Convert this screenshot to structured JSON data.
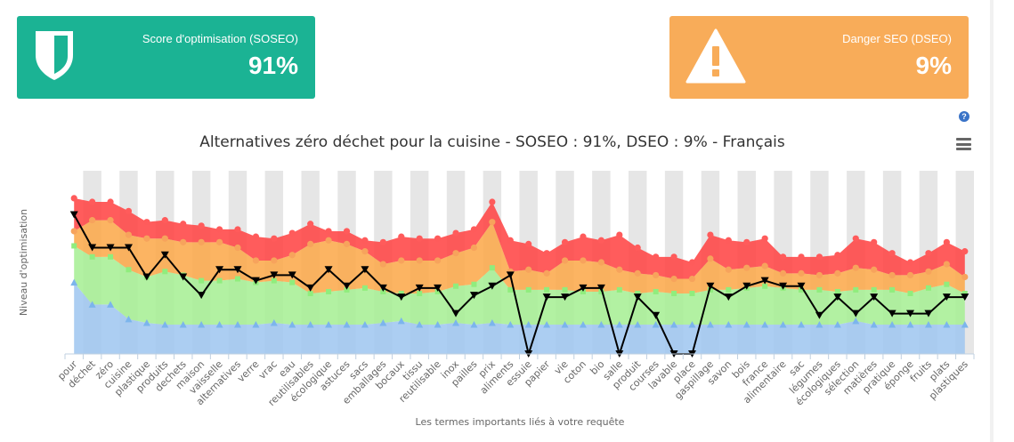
{
  "kpis": {
    "score": {
      "label": "Score d'optimisation (SOSEO)",
      "value": "91%",
      "icon": "shield-icon",
      "color": "#1bb394"
    },
    "danger": {
      "label": "Danger SEO (DSEO)",
      "value": "9%",
      "icon": "warning-icon",
      "color": "#f8ac59"
    }
  },
  "toolbar": {
    "help_icon": "question-icon",
    "help_text": "?",
    "menu_icon": "hamburger-menu-icon"
  },
  "chart_data": {
    "type": "area",
    "title": "Alternatives zéro déchet pour la cuisine - SOSEO : 91%, DSEO : 9% - Français",
    "xlabel": "Les termes importants liés à votre requête",
    "ylabel": "Niveau d'optimisation",
    "ylim": [
      0,
      100
    ],
    "grid": "alternating-columns",
    "legend": "none",
    "categories": [
      "pour",
      "déchet",
      "zéro",
      "cuisine",
      "plastique",
      "produits",
      "dechets",
      "maison",
      "vaisselle",
      "alternatives",
      "verre",
      "vrac",
      "eau",
      "reutilisables",
      "écologique",
      "astuces",
      "sacs",
      "emballages",
      "bocaux",
      "tissu",
      "reutilisable",
      "inox",
      "pailles",
      "prix",
      "aliments",
      "essuie",
      "papier",
      "vie",
      "coton",
      "bio",
      "salle",
      "produit",
      "courses",
      "lavable",
      "place",
      "gaspillage",
      "savon",
      "bois",
      "france",
      "alimentaire",
      "sac",
      "légumes",
      "écologiques",
      "sélection",
      "matières",
      "pratique",
      "éponge",
      "fruits",
      "plats",
      "plastiques"
    ],
    "series": [
      {
        "color": "#7cb5ec",
        "marker": "triangle",
        "values": [
          39,
          27,
          27,
          19,
          17,
          16,
          16,
          16,
          16,
          16,
          16,
          17,
          16,
          16,
          16,
          16,
          16,
          17,
          18,
          16,
          16,
          17,
          16,
          17,
          16,
          16,
          16,
          16,
          16,
          16,
          16,
          16,
          16,
          16,
          16,
          16,
          16,
          16,
          16,
          16,
          16,
          16,
          16,
          18,
          16,
          16,
          16,
          16,
          16,
          16
        ]
      },
      {
        "color": "#90ed7d",
        "marker": "square",
        "values": [
          59,
          53,
          53,
          46,
          42,
          45,
          43,
          40,
          40,
          41,
          39,
          40,
          39,
          33,
          34,
          35,
          36,
          34,
          33,
          33,
          34,
          37,
          38,
          47,
          35,
          35,
          35,
          35,
          34,
          34,
          35,
          33,
          34,
          33,
          33,
          35,
          35,
          36,
          37,
          36,
          35,
          35,
          34,
          35,
          35,
          35,
          33,
          36,
          38,
          33
        ]
      },
      {
        "color": "#f7a35c",
        "marker": "circle",
        "values": [
          67,
          73,
          73,
          65,
          63,
          63,
          61,
          61,
          61,
          58,
          51,
          51,
          54,
          60,
          62,
          60,
          56,
          49,
          51,
          51,
          51,
          55,
          58,
          72,
          45,
          46,
          44,
          51,
          51,
          50,
          46,
          44,
          43,
          41,
          41,
          52,
          46,
          47,
          48,
          44,
          44,
          43,
          44,
          47,
          46,
          43,
          43,
          45,
          49,
          42
        ]
      },
      {
        "color": "#ff5b5b",
        "marker": "circle",
        "values": [
          85,
          83,
          83,
          78,
          72,
          73,
          71,
          70,
          68,
          68,
          64,
          63,
          66,
          71,
          67,
          67,
          62,
          61,
          64,
          63,
          63,
          66,
          68,
          83,
          62,
          60,
          55,
          61,
          64,
          62,
          65,
          58,
          53,
          53,
          50,
          65,
          62,
          61,
          63,
          53,
          53,
          53,
          54,
          63,
          61,
          55,
          50,
          55,
          61,
          56
        ]
      },
      {
        "color": "#000000",
        "marker": "triangle-down",
        "values": [
          76,
          58,
          58,
          58,
          42,
          54,
          42,
          32,
          46,
          46,
          40,
          43,
          43,
          36,
          46,
          37,
          46,
          36,
          31,
          36,
          36,
          22,
          32,
          37,
          43,
          0,
          31,
          31,
          36,
          36,
          0,
          31,
          21,
          0,
          0,
          37,
          31,
          37,
          40,
          37,
          37,
          21,
          31,
          22,
          31,
          22,
          22,
          22,
          31,
          31
        ]
      }
    ]
  }
}
